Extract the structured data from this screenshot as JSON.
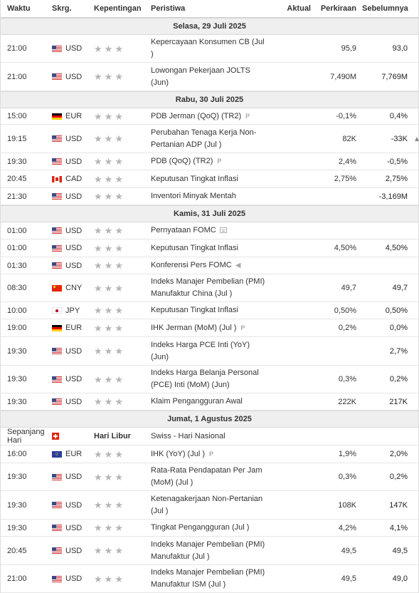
{
  "columns": {
    "time": "Waktu",
    "currency": "Skrg.",
    "importance": "Kepentingan",
    "event": "Peristiwa",
    "actual": "Aktual",
    "forecast": "Perkiraan",
    "previous": "Sebelumnya"
  },
  "days": [
    {
      "label": "Selasa, 29 Juli 2025",
      "events": [
        {
          "time": "21:00",
          "currency": "USD",
          "flag": "us",
          "importance": 3,
          "event": "Kepercayaan Konsumen CB (Jul )",
          "actual": "",
          "forecast": "95,9",
          "previous": "93,0",
          "h": 38
        },
        {
          "time": "21:00",
          "currency": "USD",
          "flag": "us",
          "importance": 3,
          "event": "Lowongan Pekerjaan JOLTS (Jun)",
          "actual": "",
          "forecast": "7,490M",
          "previous": "7,769M",
          "h": 39
        }
      ]
    },
    {
      "label": "Rabu, 30 Juli 2025",
      "events": [
        {
          "time": "15:00",
          "currency": "EUR",
          "flag": "de",
          "importance": 3,
          "event": "PDB Jerman (QoQ) (TR2)",
          "tag": "P",
          "actual": "",
          "forecast": "-0,1%",
          "previous": "0,4%",
          "h": 22
        },
        {
          "time": "19:15",
          "currency": "USD",
          "flag": "us",
          "importance": 3,
          "event": "Perubahan Tenaga Kerja Non-Pertanian ADP (Jul )",
          "actual": "",
          "forecast": "82K",
          "previous": "-33K",
          "alert": true,
          "h": 39
        },
        {
          "time": "19:30",
          "currency": "USD",
          "flag": "us",
          "importance": 3,
          "event": "PDB (QoQ) (TR2)",
          "tag": "P",
          "actual": "",
          "forecast": "2,4%",
          "previous": "-0,5%",
          "h": 23
        },
        {
          "time": "20:45",
          "currency": "CAD",
          "flag": "ca",
          "importance": 3,
          "event": "Keputusan Tingkat Inflasi",
          "actual": "",
          "forecast": "2,75%",
          "previous": "2,75%",
          "h": 24
        },
        {
          "time": "21:30",
          "currency": "USD",
          "flag": "us",
          "importance": 3,
          "event": "Inventori Minyak Mentah",
          "actual": "",
          "forecast": "",
          "previous": "-3,169M",
          "h": 23
        }
      ]
    },
    {
      "label": "Kamis, 31 Juli 2025",
      "events": [
        {
          "time": "01:00",
          "currency": "USD",
          "flag": "us",
          "importance": 3,
          "event": "Pernyataan FOMC",
          "icon": "doc",
          "actual": "",
          "forecast": "",
          "previous": "",
          "h": 23
        },
        {
          "time": "01:00",
          "currency": "USD",
          "flag": "us",
          "importance": 3,
          "event": "Keputusan Tingkat Inflasi",
          "actual": "",
          "forecast": "4,50%",
          "previous": "4,50%",
          "h": 24
        },
        {
          "time": "01:30",
          "currency": "USD",
          "flag": "us",
          "importance": 3,
          "event": "Konferensi Pers FOMC",
          "icon": "speaker",
          "actual": "",
          "forecast": "",
          "previous": "",
          "h": 23
        },
        {
          "time": "08:30",
          "currency": "CNY",
          "flag": "cn",
          "importance": 3,
          "event": "Indeks Manajer Pembelian (PMI) Manufaktur China (Jul )",
          "actual": "",
          "forecast": "49,7",
          "previous": "49,7",
          "h": 38
        },
        {
          "time": "10:00",
          "currency": "JPY",
          "flag": "jp",
          "importance": 3,
          "event": "Keputusan Tingkat Inflasi",
          "actual": "",
          "forecast": "0,50%",
          "previous": "0,50%",
          "h": 23
        },
        {
          "time": "19:00",
          "currency": "EUR",
          "flag": "de",
          "importance": 3,
          "event": "IHK Jerman (MoM) (Jul )",
          "tag": "P",
          "actual": "",
          "forecast": "0,2%",
          "previous": "0,0%",
          "h": 24
        },
        {
          "time": "19:30",
          "currency": "USD",
          "flag": "us",
          "importance": 3,
          "event": "Indeks Harga PCE Inti (YoY) (Jun)",
          "actual": "",
          "forecast": "",
          "previous": "2,7%",
          "h": 39
        },
        {
          "time": "19:30",
          "currency": "USD",
          "flag": "us",
          "importance": 3,
          "event": "Indeks Harga Belanja Personal (PCE) Inti (MoM) (Jun)",
          "actual": "",
          "forecast": "0,3%",
          "previous": "0,2%",
          "h": 38
        },
        {
          "time": "19:30",
          "currency": "USD",
          "flag": "us",
          "importance": 3,
          "event": "Klaim Pengangguran Awal",
          "actual": "",
          "forecast": "222K",
          "previous": "217K",
          "h": 23
        }
      ]
    },
    {
      "label": "Jumat, 1 Agustus 2025",
      "events": [
        {
          "time": "Sepanjang Hari",
          "currency": "",
          "flag": "ch",
          "importance": 0,
          "holiday": "Hari Libur",
          "event": "Swiss - Hari Nasional",
          "actual": "",
          "forecast": "",
          "previous": "",
          "h": 24
        },
        {
          "time": "16:00",
          "currency": "EUR",
          "flag": "eu",
          "importance": 3,
          "event": "IHK (YoY) (Jul )",
          "tag": "P",
          "actual": "",
          "forecast": "1,9%",
          "previous": "2,0%",
          "h": 24
        },
        {
          "time": "19:30",
          "currency": "USD",
          "flag": "us",
          "importance": 3,
          "event": "Rata-Rata Pendapatan Per Jam (MoM) (Jul )",
          "actual": "",
          "forecast": "0,3%",
          "previous": "0,2%",
          "h": 38
        },
        {
          "time": "19:30",
          "currency": "USD",
          "flag": "us",
          "importance": 3,
          "event": "Ketenagakerjaan Non-Pertanian (Jul )",
          "actual": "",
          "forecast": "108K",
          "previous": "147K",
          "h": 39
        },
        {
          "time": "19:30",
          "currency": "USD",
          "flag": "us",
          "importance": 3,
          "event": "Tingkat Pengangguran (Jul )",
          "actual": "",
          "forecast": "4,2%",
          "previous": "4,1%",
          "h": 23
        },
        {
          "time": "20:45",
          "currency": "USD",
          "flag": "us",
          "importance": 3,
          "event": "Indeks Manajer Pembelian (PMI) Manufaktur (Jul )",
          "actual": "",
          "forecast": "49,5",
          "previous": "49,5",
          "h": 39
        },
        {
          "time": "21:00",
          "currency": "USD",
          "flag": "us",
          "importance": 3,
          "event": "Indeks Manajer Pembelian (PMI) Manufaktur ISM (Jul )",
          "actual": "",
          "forecast": "49,5",
          "previous": "49,0",
          "h": 38
        }
      ]
    }
  ]
}
